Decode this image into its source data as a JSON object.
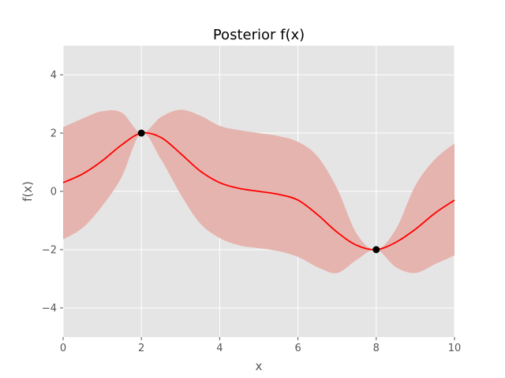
{
  "chart_data": {
    "type": "line",
    "title": "Posterior f(x)",
    "xlabel": "x",
    "ylabel": "f(x)",
    "xlim": [
      0,
      10
    ],
    "ylim": [
      -5,
      5
    ],
    "xticks": [
      0,
      2,
      4,
      6,
      8,
      10
    ],
    "yticks": [
      -4,
      -2,
      0,
      2,
      4
    ],
    "grid": true,
    "colors": {
      "background": "#e5e5e5",
      "grid": "#ffffff",
      "mean": "#ff0000",
      "band": "#e6b4ae",
      "points": "#000000"
    },
    "x": [
      0,
      0.5,
      1,
      1.5,
      2,
      2.5,
      3,
      3.5,
      4,
      4.5,
      5,
      5.5,
      6,
      6.5,
      7,
      7.5,
      8,
      8.5,
      9,
      9.5,
      10
    ],
    "mean": [
      0.3,
      0.6,
      1.05,
      1.6,
      2.0,
      1.85,
      1.3,
      0.7,
      0.3,
      0.1,
      0.0,
      -0.1,
      -0.3,
      -0.8,
      -1.4,
      -1.85,
      -2.0,
      -1.75,
      -1.3,
      -0.75,
      -0.3
    ],
    "upper": [
      2.2,
      2.5,
      2.75,
      2.7,
      2.0,
      2.55,
      2.8,
      2.6,
      2.25,
      2.1,
      2.0,
      1.9,
      1.7,
      1.2,
      0.1,
      -1.45,
      -2.0,
      -1.3,
      0.2,
      1.1,
      1.65
    ],
    "lower": [
      -1.65,
      -1.25,
      -0.5,
      0.5,
      2.0,
      1.1,
      -0.1,
      -1.1,
      -1.6,
      -1.85,
      -1.95,
      -2.05,
      -2.25,
      -2.6,
      -2.8,
      -2.35,
      -2.0,
      -2.6,
      -2.8,
      -2.5,
      -2.2
    ],
    "observations": [
      {
        "x": 2,
        "y": 2
      },
      {
        "x": 8,
        "y": -2
      }
    ]
  }
}
